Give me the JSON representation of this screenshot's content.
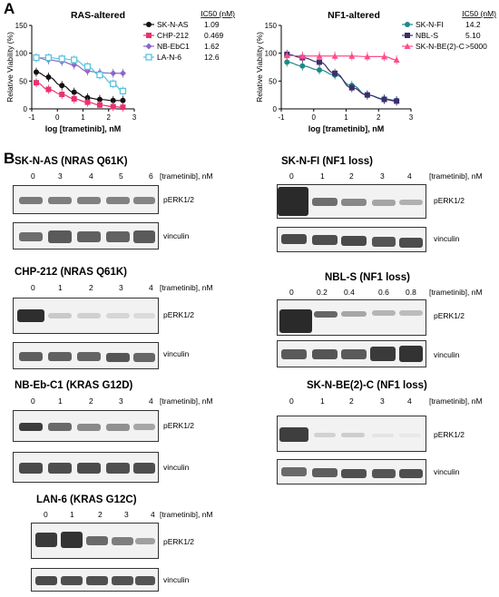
{
  "panels": {
    "a": "A",
    "b": "B"
  },
  "chart_data": [
    {
      "type": "line",
      "title": "RAS-altered",
      "xlabel": "log [trametinib], nM",
      "ylabel": "Relative Viability (%)",
      "xlim": [
        -1,
        3
      ],
      "ylim": [
        0,
        150
      ],
      "xticks": [
        "-1",
        "0",
        "1",
        "2",
        "3"
      ],
      "yticks": [
        "0",
        "50",
        "100",
        "150"
      ],
      "ic50_header": "IC50 (nM)",
      "series": [
        {
          "name": "SK-N-AS",
          "ic50": "1.09",
          "color": "#111111",
          "marker": "circle",
          "x": [
            -0.824,
            -0.347,
            0.176,
            0.653,
            1.176,
            1.653,
            2.176,
            2.556
          ],
          "y": [
            66,
            57,
            42,
            30,
            20,
            17,
            15,
            15
          ]
        },
        {
          "name": "CHP-212",
          "ic50": "0.469",
          "color": "#e8336f",
          "marker": "square",
          "x": [
            -0.824,
            -0.347,
            0.176,
            0.653,
            1.176,
            1.653,
            2.176,
            2.556
          ],
          "y": [
            47,
            35,
            26,
            18,
            12,
            7,
            4,
            3
          ]
        },
        {
          "name": "NB-EbC1",
          "ic50": "1.62",
          "color": "#8a67c9",
          "marker": "diamond",
          "x": [
            -0.824,
            -0.347,
            0.176,
            0.653,
            1.176,
            1.653,
            2.176,
            2.556
          ],
          "y": [
            92,
            88,
            85,
            79,
            68,
            65,
            64,
            64
          ]
        },
        {
          "name": "LA-N-6",
          "ic50": "12.6",
          "color": "#5bc3de",
          "marker": "open-square",
          "x": [
            -0.824,
            -0.347,
            0.176,
            0.653,
            1.176,
            1.653,
            2.176,
            2.556
          ],
          "y": [
            92,
            92,
            90,
            88,
            76,
            61,
            45,
            32
          ]
        }
      ]
    },
    {
      "type": "line",
      "title": "NF1-altered",
      "xlabel": "log [trametinib], nM",
      "ylabel": "Relative Viability (%)",
      "xlim": [
        -1,
        3
      ],
      "ylim": [
        0,
        150
      ],
      "xticks": [
        "-1",
        "0",
        "1",
        "2",
        "3"
      ],
      "yticks": [
        "0",
        "50",
        "100",
        "150"
      ],
      "ic50_header": "IC50 (nM)",
      "series": [
        {
          "name": "SK-N-FI",
          "ic50": "14.2",
          "color": "#1e8a86",
          "marker": "circle",
          "x": [
            -0.824,
            -0.347,
            0.176,
            0.653,
            1.176,
            1.653,
            2.176,
            2.556
          ],
          "y": [
            84,
            77,
            70,
            61,
            42,
            25,
            18,
            15
          ]
        },
        {
          "name": "NBL-S",
          "ic50": "5.10",
          "color": "#3b2e6e",
          "marker": "square",
          "x": [
            -0.824,
            -0.347,
            0.176,
            0.653,
            1.176,
            1.653,
            2.176,
            2.556
          ],
          "y": [
            98,
            92,
            84,
            64,
            38,
            25,
            17,
            14
          ]
        },
        {
          "name": "SK-N-BE(2)-C",
          "ic50": ">5000",
          "color": "#ff4d8a",
          "marker": "triangle",
          "x": [
            -0.824,
            -0.347,
            0.176,
            0.653,
            1.176,
            1.653,
            2.176,
            2.556
          ],
          "y": [
            96,
            95,
            95,
            95,
            95,
            94,
            94,
            88
          ]
        }
      ]
    }
  ],
  "blots": {
    "drug_label": "[trametinib], nM",
    "sknas": {
      "title": "SK-N-AS (NRAS Q61K)",
      "lanes": [
        "0",
        "3",
        "4",
        "5",
        "6"
      ],
      "top": "pERK1/2",
      "bottom": "vinculin"
    },
    "chp212": {
      "title": "CHP-212 (NRAS Q61K)",
      "lanes": [
        "0",
        "1",
        "2",
        "3",
        "4"
      ],
      "top": "pERK1/2",
      "bottom": "vinculin"
    },
    "nbebc1": {
      "title": "NB-Eb-C1 (KRAS G12D)",
      "lanes": [
        "0",
        "1",
        "2",
        "3",
        "4"
      ],
      "top": "pERK1/2",
      "bottom": "vinculin"
    },
    "lan6": {
      "title": "LAN-6 (KRAS G12C)",
      "lanes": [
        "0",
        "1",
        "2",
        "3",
        "4"
      ],
      "top": "pERK1/2",
      "bottom": "vinculin"
    },
    "sknfi": {
      "title": "SK-N-FI (NF1 loss)",
      "lanes": [
        "0",
        "1",
        "2",
        "3",
        "4"
      ],
      "top": "pERK1/2",
      "bottom": "vinculin"
    },
    "nbls": {
      "title": "NBL-S (NF1 loss)",
      "lanes": [
        "0",
        "0.2",
        "0.4",
        "0.6",
        "0.8"
      ],
      "top": "pERK1/2",
      "bottom": "vinculin"
    },
    "sknbe2c": {
      "title": "SK-N-BE(2)-C (NF1 loss)",
      "lanes": [
        "0",
        "1",
        "2",
        "3",
        "4"
      ],
      "top": "pERK1/2",
      "bottom": "vinculin"
    }
  }
}
